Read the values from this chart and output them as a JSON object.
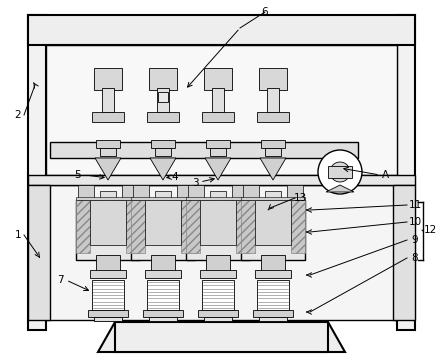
{
  "bg_color": "#ffffff",
  "line_color": "#000000",
  "gray_light": "#f0f0f0",
  "gray_med": "#d8d8d8",
  "gray_dark": "#b0b0b0",
  "hatch_fill": "#c8c8c8"
}
